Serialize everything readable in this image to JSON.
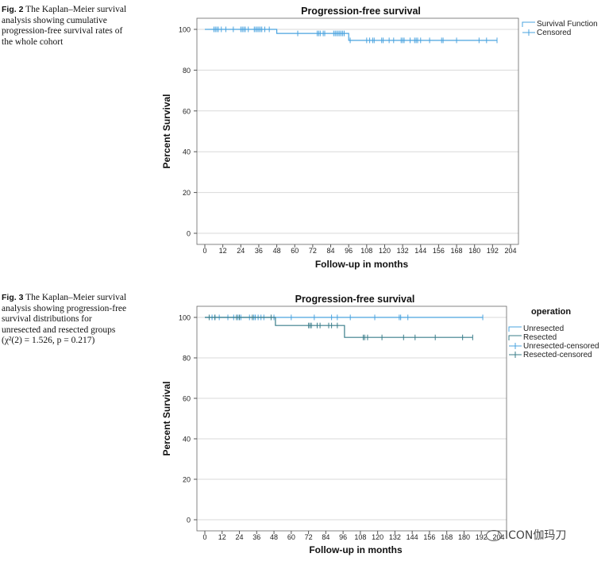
{
  "captions": [
    {
      "label": "Fig. 2",
      "text": "The Kaplan–Meier survival analysis showing cumulative progression-free survival rates of the whole cohort"
    },
    {
      "label": "Fig. 3",
      "text": "The Kaplan–Meier survival analysis showing progression-free survival distributions for unresected and resected groups (χ²(2) = 1.526, p = 0.217)"
    }
  ],
  "watermark": "ICON伽玛刀",
  "chart_data": [
    {
      "type": "line",
      "title": "Progression-free survival",
      "xlabel": "Follow-up in months",
      "ylabel": "Percent Survival",
      "xlim": [
        0,
        204
      ],
      "ylim": [
        0,
        100
      ],
      "xticks": [
        0,
        12,
        24,
        36,
        48,
        60,
        72,
        84,
        96,
        108,
        120,
        132,
        144,
        156,
        168,
        180,
        192,
        204
      ],
      "yticks": [
        0,
        20,
        40,
        60,
        80,
        100
      ],
      "grid": "horizontal",
      "legend_position": "top-right",
      "legend_title": "",
      "legend": [
        "Survival Function",
        "Censored"
      ],
      "series": [
        {
          "name": "Survival Function",
          "color": "#4aa3df",
          "steps": [
            [
              0,
              100
            ],
            [
              48,
              100
            ],
            [
              48,
              98
            ],
            [
              96,
              98
            ],
            [
              96,
              94.6
            ],
            [
              195,
              94.6
            ]
          ],
          "censored": [
            [
              6,
              100
            ],
            [
              7,
              100
            ],
            [
              8,
              100
            ],
            [
              9,
              100
            ],
            [
              11,
              100
            ],
            [
              14,
              100
            ],
            [
              19,
              100
            ],
            [
              24,
              100
            ],
            [
              25,
              100
            ],
            [
              26,
              100
            ],
            [
              27,
              100
            ],
            [
              29,
              100
            ],
            [
              33,
              100
            ],
            [
              34,
              100
            ],
            [
              35,
              100
            ],
            [
              36,
              100
            ],
            [
              37,
              100
            ],
            [
              38,
              100
            ],
            [
              40,
              100
            ],
            [
              43,
              100
            ],
            [
              62,
              98
            ],
            [
              75,
              98
            ],
            [
              76,
              98
            ],
            [
              77,
              98
            ],
            [
              79,
              98
            ],
            [
              80,
              98
            ],
            [
              86,
              98
            ],
            [
              87,
              98
            ],
            [
              88,
              98
            ],
            [
              89,
              98
            ],
            [
              90,
              98
            ],
            [
              91,
              98
            ],
            [
              92,
              98
            ],
            [
              93,
              98
            ],
            [
              97,
              94.6
            ],
            [
              108,
              94.6
            ],
            [
              110,
              94.6
            ],
            [
              112,
              94.6
            ],
            [
              113,
              94.6
            ],
            [
              118,
              94.6
            ],
            [
              119,
              94.6
            ],
            [
              123,
              94.6
            ],
            [
              126,
              94.6
            ],
            [
              131,
              94.6
            ],
            [
              132,
              94.6
            ],
            [
              133,
              94.6
            ],
            [
              137,
              94.6
            ],
            [
              140,
              94.6
            ],
            [
              141,
              94.6
            ],
            [
              142,
              94.6
            ],
            [
              144,
              94.6
            ],
            [
              150,
              94.6
            ],
            [
              158,
              94.6
            ],
            [
              159,
              94.6
            ],
            [
              168,
              94.6
            ],
            [
              183,
              94.6
            ],
            [
              188,
              94.6
            ],
            [
              195,
              94.6
            ]
          ]
        }
      ]
    },
    {
      "type": "line",
      "title": "Progression-free survival",
      "xlabel": "Follow-up in months",
      "ylabel": "Percent Survival",
      "xlim": [
        0,
        204
      ],
      "ylim": [
        0,
        100
      ],
      "xticks": [
        0,
        12,
        24,
        36,
        48,
        60,
        72,
        84,
        96,
        108,
        120,
        132,
        144,
        156,
        168,
        180,
        192,
        204
      ],
      "yticks": [
        0,
        20,
        40,
        60,
        80,
        100
      ],
      "grid": "horizontal",
      "legend_position": "right",
      "legend_title": "operation",
      "legend": [
        "Unresected",
        "Resected",
        "Unresected-censored",
        "Resected-censored"
      ],
      "series": [
        {
          "name": "Unresected",
          "color": "#4aa3df",
          "steps": [
            [
              0,
              100
            ],
            [
              193,
              100
            ]
          ],
          "censored": [
            [
              5,
              100
            ],
            [
              7,
              100
            ],
            [
              10,
              100
            ],
            [
              16,
              100
            ],
            [
              20,
              100
            ],
            [
              23,
              100
            ],
            [
              25,
              100
            ],
            [
              31,
              100
            ],
            [
              34,
              100
            ],
            [
              35,
              100
            ],
            [
              37,
              100
            ],
            [
              39,
              100
            ],
            [
              41,
              100
            ],
            [
              48,
              100
            ],
            [
              60,
              100
            ],
            [
              76,
              100
            ],
            [
              88,
              100
            ],
            [
              92,
              100
            ],
            [
              101,
              100
            ],
            [
              118,
              100
            ],
            [
              135,
              100
            ],
            [
              136,
              100
            ],
            [
              141,
              100
            ],
            [
              193,
              100
            ]
          ]
        },
        {
          "name": "Resected",
          "color": "#3a7d8a",
          "steps": [
            [
              0,
              100
            ],
            [
              49,
              100
            ],
            [
              49,
              96
            ],
            [
              97,
              96
            ],
            [
              97,
              90.1
            ],
            [
              186,
              90.1
            ]
          ],
          "censored": [
            [
              3,
              100
            ],
            [
              7,
              100
            ],
            [
              22,
              100
            ],
            [
              24,
              100
            ],
            [
              33,
              100
            ],
            [
              46,
              100
            ],
            [
              72,
              96
            ],
            [
              73,
              96
            ],
            [
              74,
              96
            ],
            [
              78,
              96
            ],
            [
              80,
              96
            ],
            [
              86,
              96
            ],
            [
              88,
              96
            ],
            [
              92,
              96
            ],
            [
              110,
              90.1
            ],
            [
              111,
              90.1
            ],
            [
              113,
              90.1
            ],
            [
              123,
              90.1
            ],
            [
              138,
              90.1
            ],
            [
              146,
              90.1
            ],
            [
              160,
              90.1
            ],
            [
              179,
              90.1
            ],
            [
              186,
              90.1
            ]
          ]
        }
      ]
    }
  ]
}
